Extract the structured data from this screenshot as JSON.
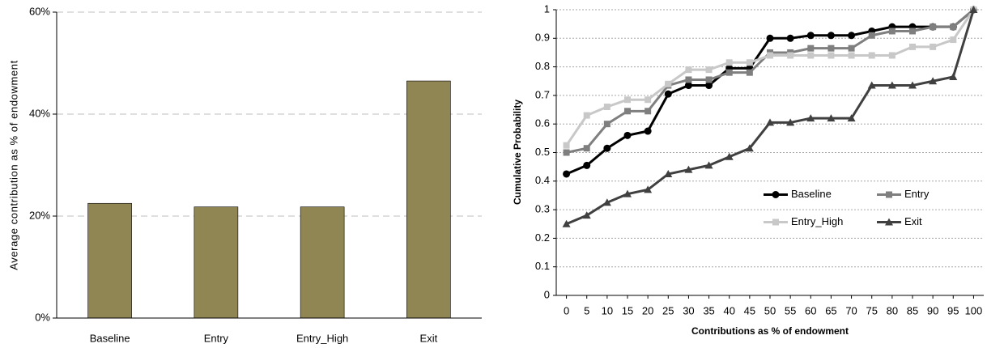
{
  "chart_data": [
    {
      "type": "bar",
      "ylabel": "Average contribution as % of endowment",
      "categories": [
        "Baseline",
        "Entry",
        "Entry_High",
        "Exit"
      ],
      "values": [
        22.5,
        21.8,
        21.8,
        46.5
      ],
      "color": "#8f8653",
      "ylim": [
        0,
        60
      ],
      "yticks": [
        {
          "value": 0,
          "label": "0%"
        },
        {
          "value": 20,
          "label": "20%"
        },
        {
          "value": 40,
          "label": "40%"
        },
        {
          "value": 60,
          "label": "60%"
        }
      ],
      "grid": true
    },
    {
      "type": "line",
      "xlabel": "Contributions as % of endowment",
      "ylabel": "Cumulative Probability",
      "x": [
        0,
        5,
        10,
        15,
        20,
        25,
        30,
        35,
        40,
        45,
        50,
        55,
        60,
        65,
        70,
        75,
        80,
        85,
        90,
        95,
        100
      ],
      "xlim": [
        -2.5,
        102.5
      ],
      "xticks": [
        0,
        5,
        10,
        15,
        20,
        25,
        30,
        35,
        40,
        45,
        50,
        55,
        60,
        65,
        70,
        75,
        80,
        85,
        90,
        95,
        100
      ],
      "ylim": [
        0,
        1
      ],
      "yticks": [
        0,
        0.1,
        0.2,
        0.3,
        0.4,
        0.5,
        0.6,
        0.7,
        0.8,
        0.9,
        1
      ],
      "grid": true,
      "legend_position": "center right",
      "series": [
        {
          "name": "Baseline",
          "color": "#000000",
          "marker": "circle",
          "values": [
            0.425,
            0.455,
            0.515,
            0.56,
            0.575,
            0.705,
            0.735,
            0.735,
            0.795,
            0.795,
            0.9,
            0.9,
            0.91,
            0.91,
            0.91,
            0.925,
            0.94,
            0.94,
            0.94,
            0.94,
            1.0
          ]
        },
        {
          "name": "Entry",
          "color": "#7f7f7f",
          "marker": "square",
          "values": [
            0.5,
            0.515,
            0.6,
            0.645,
            0.645,
            0.735,
            0.755,
            0.755,
            0.78,
            0.78,
            0.85,
            0.85,
            0.865,
            0.865,
            0.865,
            0.91,
            0.925,
            0.925,
            0.94,
            0.94,
            1.0
          ]
        },
        {
          "name": "Entry_High",
          "color": "#c8c8c8",
          "marker": "square",
          "values": [
            0.525,
            0.63,
            0.66,
            0.685,
            0.685,
            0.74,
            0.79,
            0.79,
            0.815,
            0.815,
            0.84,
            0.84,
            0.84,
            0.84,
            0.84,
            0.84,
            0.84,
            0.87,
            0.87,
            0.895,
            1.0
          ]
        },
        {
          "name": "Exit",
          "color": "#404040",
          "marker": "triangle",
          "values": [
            0.25,
            0.28,
            0.325,
            0.355,
            0.37,
            0.425,
            0.44,
            0.455,
            0.485,
            0.515,
            0.605,
            0.605,
            0.62,
            0.62,
            0.62,
            0.735,
            0.735,
            0.735,
            0.75,
            0.765,
            1.0
          ]
        }
      ]
    }
  ]
}
